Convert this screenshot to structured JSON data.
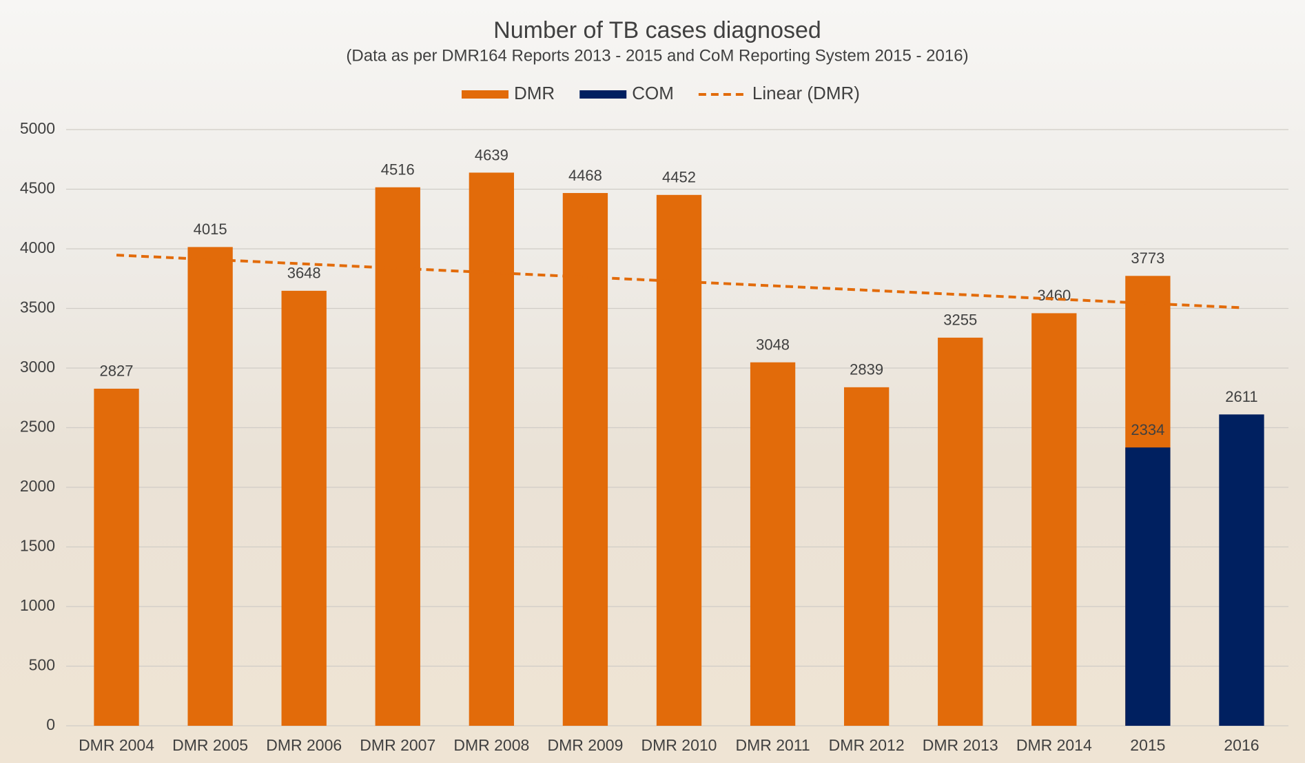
{
  "chart_data": {
    "type": "bar",
    "title": "Number of TB cases diagnosed",
    "subtitle": "(Data as per DMR164  Reports 2013 - 2015 and CoM Reporting System 2015 - 2016)",
    "categories": [
      "DMR 2004",
      "DMR 2005",
      "DMR 2006",
      "DMR 2007",
      "DMR 2008",
      "DMR 2009",
      "DMR 2010",
      "DMR 2011",
      "DMR 2012",
      "DMR 2013",
      "DMR 2014",
      "2015",
      "2016"
    ],
    "series": [
      {
        "name": "DMR",
        "color": "#e26b0a",
        "values": [
          2827,
          4015,
          3648,
          4516,
          4639,
          4468,
          4452,
          3048,
          2839,
          3255,
          3460,
          3773,
          null
        ]
      },
      {
        "name": "COM",
        "color": "#002060",
        "values": [
          null,
          null,
          null,
          null,
          null,
          null,
          null,
          null,
          null,
          null,
          null,
          2334,
          2611
        ]
      }
    ],
    "trendline": {
      "name": "Linear (DMR)",
      "type": "linear",
      "series": 0,
      "color": "#e26b0a",
      "dashed": true
    },
    "ylim": [
      0,
      5000
    ],
    "yticks": [
      0,
      500,
      1000,
      1500,
      2000,
      2500,
      3000,
      3500,
      4000,
      4500,
      5000
    ],
    "grid": true,
    "legend": "top"
  }
}
